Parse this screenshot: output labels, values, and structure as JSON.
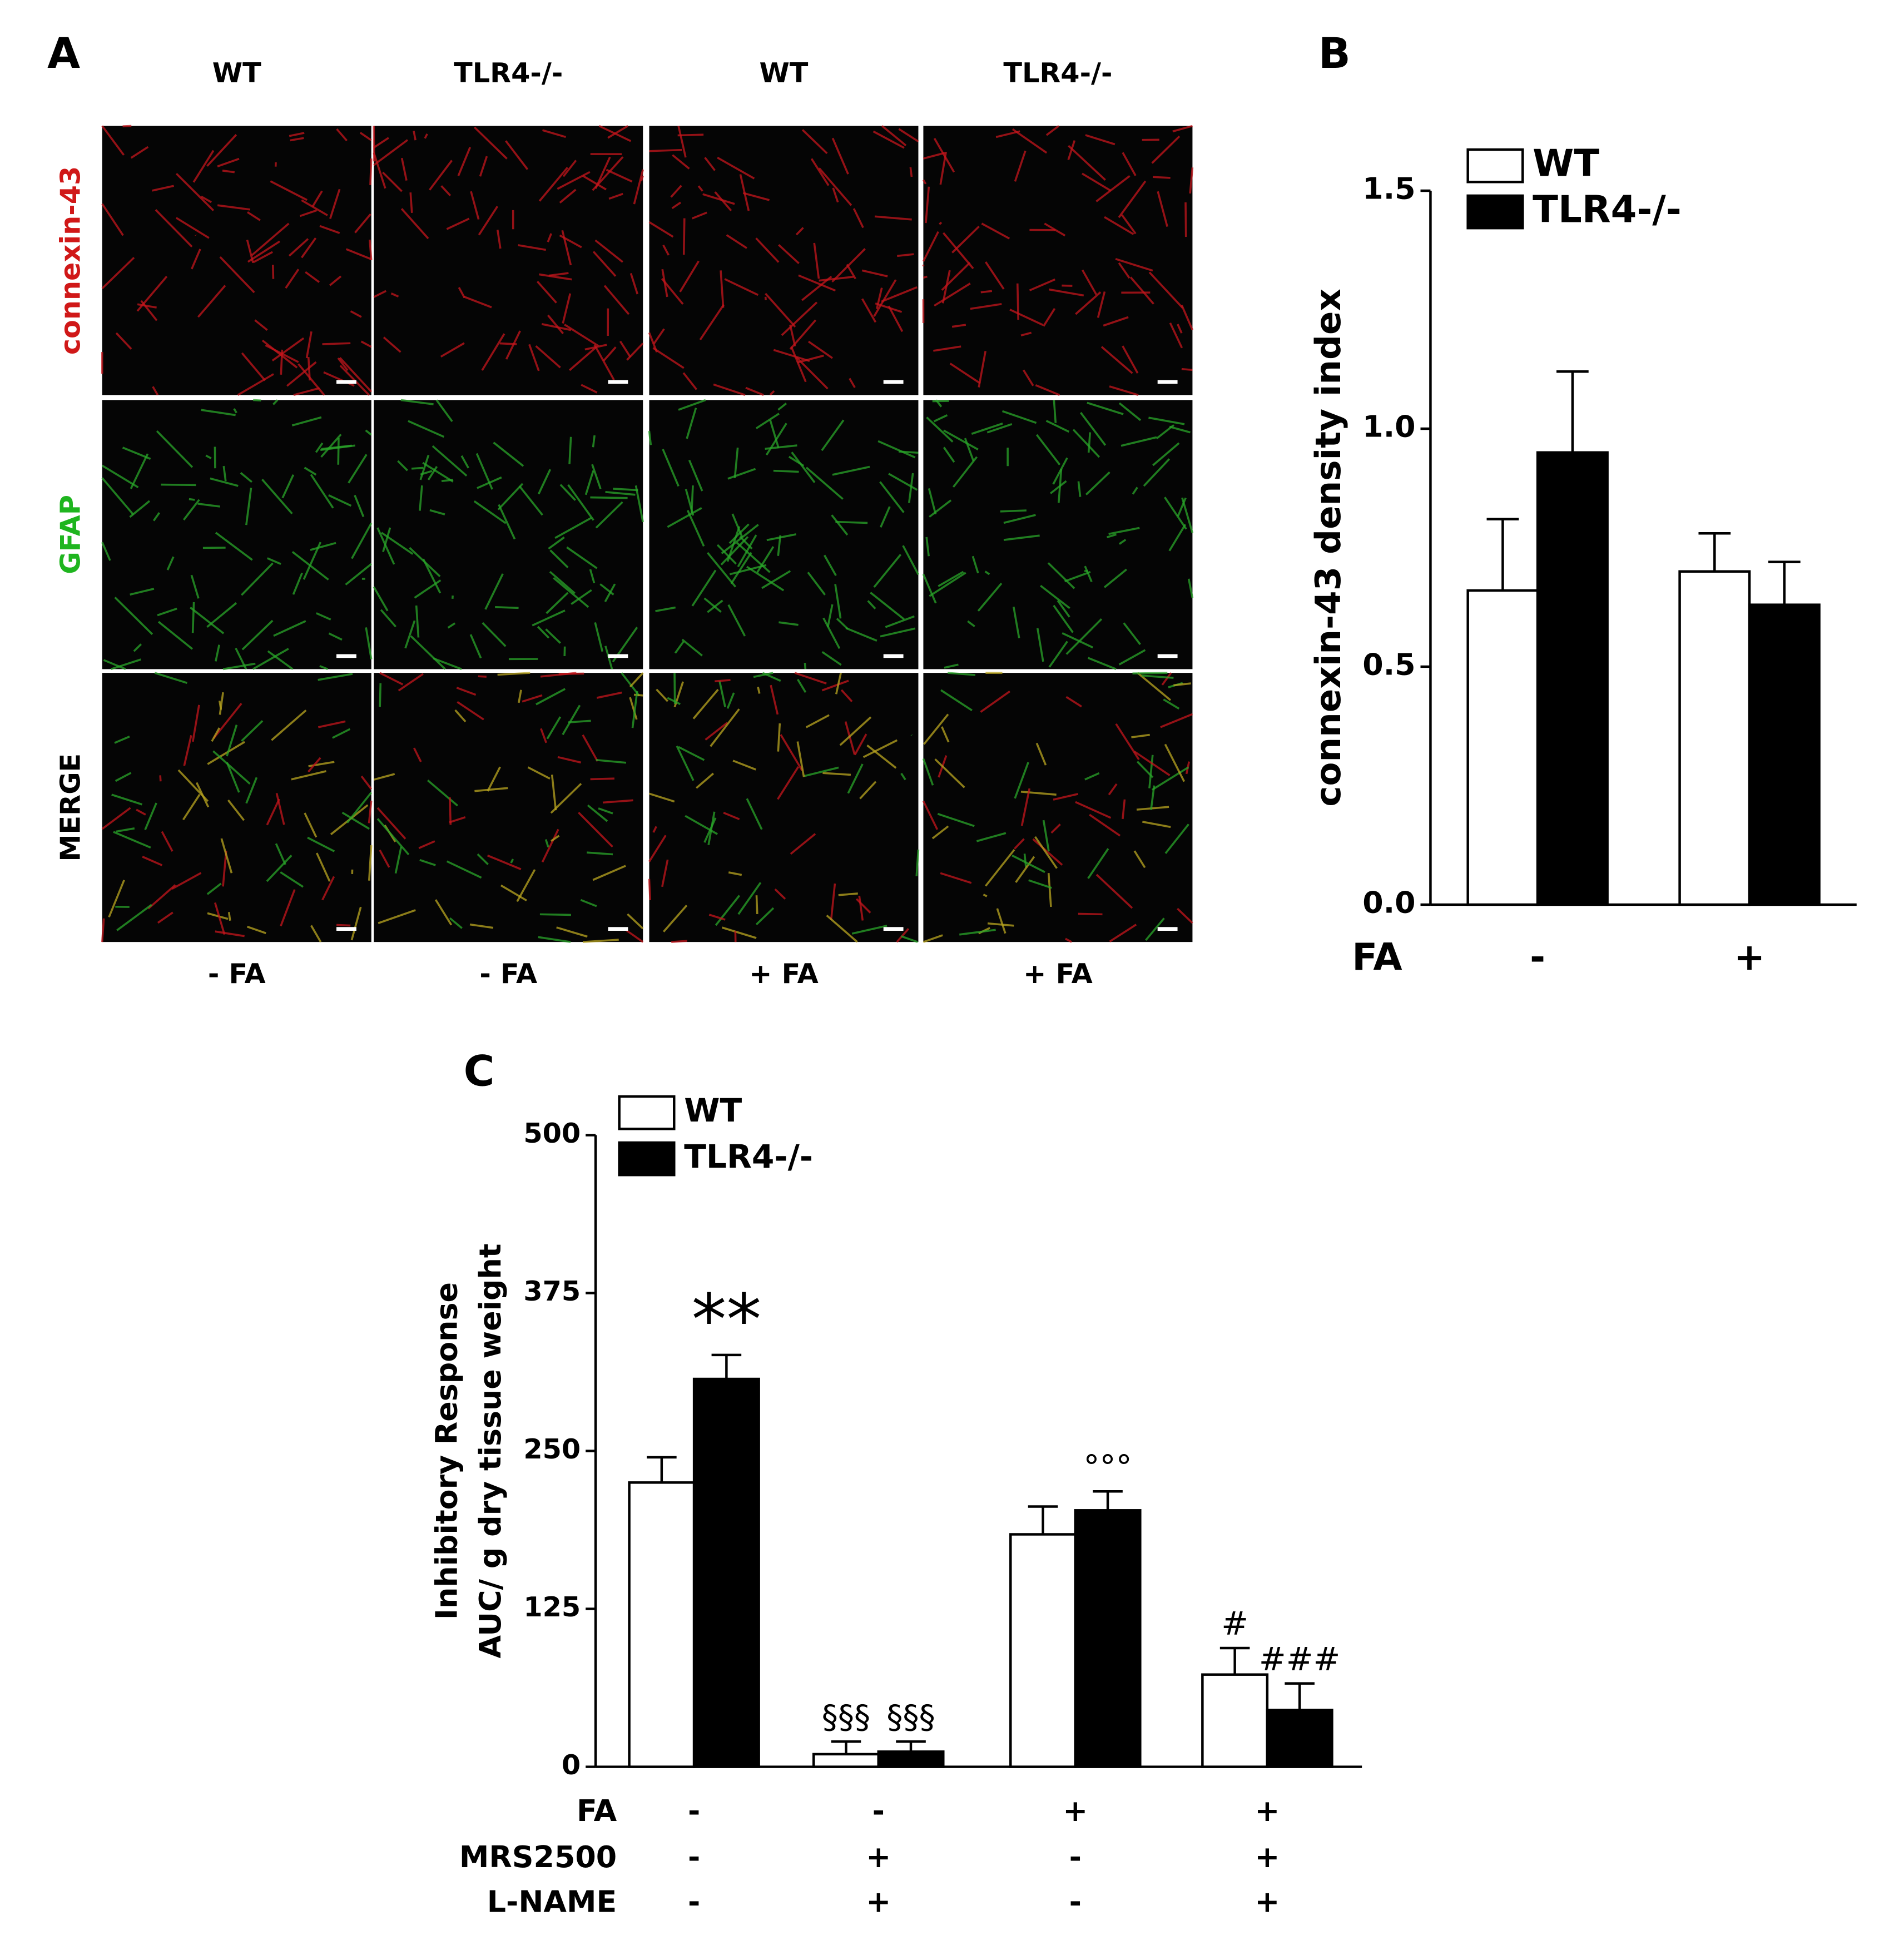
{
  "panel_a": {
    "panel_label": "A",
    "columns": [
      "WT",
      "TLR4-/-",
      "WT",
      "TLR4-/-"
    ],
    "rows": [
      "connexin-43",
      "GFAP",
      "MERGE"
    ],
    "conditions": [
      "- FA",
      "- FA",
      "+ FA",
      "+ FA"
    ]
  },
  "chart_data": [
    {
      "type": "bar",
      "panel_label": "B",
      "y_label": "connexin-43 density index",
      "categories": [
        null,
        null
      ],
      "conditions": [
        {
          "label": "FA",
          "values": [
            "-",
            "+"
          ]
        }
      ],
      "series": [
        {
          "name": "WT",
          "color": "#ffffff",
          "values": [
            0.66,
            0.7
          ],
          "errors": [
            0.15,
            0.08
          ]
        },
        {
          "name": "TLR4-/-",
          "color": "#000000",
          "values": [
            0.95,
            0.63
          ],
          "errors": [
            0.17,
            0.09
          ]
        }
      ],
      "ylim": [
        0,
        1.5
      ],
      "yticks": [
        {
          "value": 0,
          "label": "0.0"
        },
        {
          "value": 0.5,
          "label": "0.5"
        },
        {
          "value": 1,
          "label": "1.0"
        },
        {
          "value": 1.5,
          "label": "1.5"
        }
      ]
    },
    {
      "type": "bar",
      "panel_label": "C",
      "y_label": [
        "Inhibitory Response",
        "AUC/ g dry tissue weight"
      ],
      "categories": [
        null,
        null,
        null,
        null
      ],
      "conditions": [
        {
          "label": "FA",
          "values": [
            "-",
            "-",
            "+",
            "+"
          ]
        },
        {
          "label": "MRS2500",
          "values": [
            "-",
            "+",
            "-",
            "+"
          ]
        },
        {
          "label": "L-NAME",
          "values": [
            "-",
            "+",
            "-",
            "+"
          ]
        }
      ],
      "series": [
        {
          "name": "WT",
          "color": "#ffffff",
          "values": [
            225,
            10,
            184,
            73
          ],
          "errors": [
            20,
            10,
            22,
            21
          ]
        },
        {
          "name": "TLR4-/-",
          "color": "#000000",
          "values": [
            307,
            12,
            203,
            45
          ],
          "errors": [
            19,
            8,
            15,
            21
          ]
        }
      ],
      "annotations": [
        "**",
        "§§§",
        "§§§",
        "°°°",
        "#",
        "###"
      ],
      "ylim": [
        0,
        500
      ],
      "yticks": [
        0,
        125,
        250,
        375,
        500
      ]
    }
  ]
}
